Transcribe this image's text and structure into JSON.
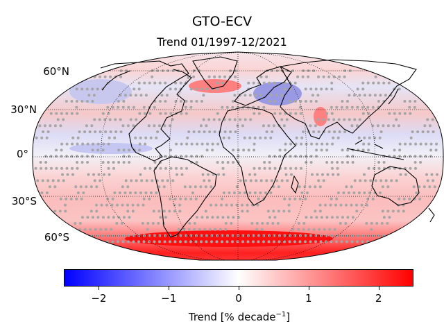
{
  "figure": {
    "title": "GTO-ECV",
    "subtitle": "Trend 01/1997-12/2021",
    "projection": "robinson",
    "lat_labels": [
      "60°N",
      "30°N",
      "0°",
      "30°S",
      "60°S"
    ],
    "significance_marker": "grey dots",
    "colormap": [
      "#0000ff",
      "#ffffff",
      "#ff0000"
    ]
  },
  "colorbar": {
    "title_prefix": "Trend [% decade",
    "title_sup": "−1",
    "title_suffix": "]",
    "range": [
      -2.5,
      2.5
    ],
    "ticks": [
      -2,
      -1,
      0,
      1,
      2
    ],
    "tick_labels": [
      "−2",
      "−1",
      "0",
      "1",
      "2"
    ]
  }
}
